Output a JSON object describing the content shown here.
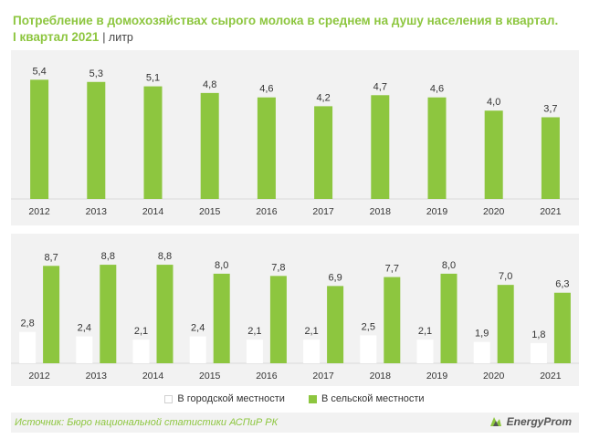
{
  "title_line1": "Потребление в домохозяйствах сырого молока в среднем на душу населения в квартал.",
  "title_line2": "I квартал 2021",
  "unit": "| литр",
  "colors": {
    "green": "#8dc63f",
    "white": "#ffffff",
    "panel": "#f2f2f2",
    "text": "#333333"
  },
  "legend": {
    "urban": "В городской местности",
    "rural": "В сельской местности"
  },
  "source": "Источник: Бюро национальной  статистики АСПиР РК",
  "brand": "EnergyProm",
  "chart_data": [
    {
      "type": "bar",
      "categories": [
        "2012",
        "2013",
        "2014",
        "2015",
        "2016",
        "2017",
        "2018",
        "2019",
        "2020",
        "2021"
      ],
      "values": [
        5.4,
        5.3,
        5.1,
        4.8,
        4.6,
        4.2,
        4.7,
        4.6,
        4.0,
        3.7
      ],
      "labels": [
        "5,4",
        "5,3",
        "5,1",
        "4,8",
        "4,6",
        "4,2",
        "4,7",
        "4,6",
        "4,0",
        "3,7"
      ],
      "ylim": [
        0,
        6.2
      ]
    },
    {
      "type": "bar",
      "categories": [
        "2012",
        "2013",
        "2014",
        "2015",
        "2016",
        "2017",
        "2018",
        "2019",
        "2020",
        "2021"
      ],
      "series": [
        {
          "name": "В городской местности",
          "values": [
            2.8,
            2.4,
            2.1,
            2.4,
            2.1,
            2.1,
            2.5,
            2.1,
            1.9,
            1.8
          ],
          "labels": [
            "2,8",
            "2,4",
            "2,1",
            "2,4",
            "2,1",
            "2,1",
            "2,5",
            "2,1",
            "1,9",
            "1,8"
          ]
        },
        {
          "name": "В сельской местности",
          "values": [
            8.7,
            8.8,
            8.8,
            8.0,
            7.8,
            6.9,
            7.7,
            8.0,
            7.0,
            6.3
          ],
          "labels": [
            "8,7",
            "8,8",
            "8,8",
            "8,0",
            "7,8",
            "6,9",
            "7,7",
            "8,0",
            "7,0",
            "6,3"
          ]
        }
      ],
      "ylim": [
        0,
        10.6
      ]
    }
  ]
}
